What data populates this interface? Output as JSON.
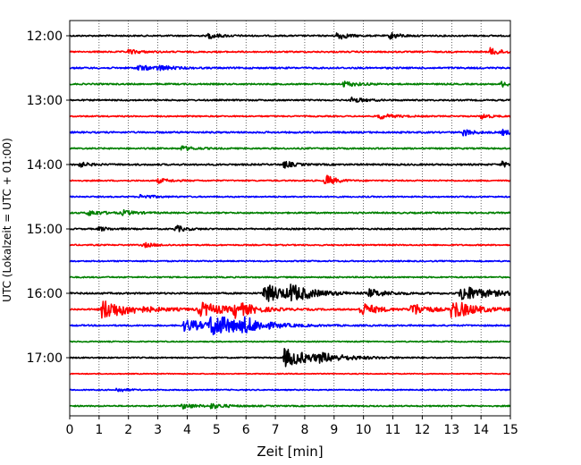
{
  "chart_data": {
    "type": "line",
    "title": "",
    "xlabel": "Zeit  [min]",
    "ylabel": "UTC (Lokalzeit = UTC + 01:00)",
    "xlim": [
      0,
      15
    ],
    "x_ticks": [
      0,
      1,
      2,
      3,
      4,
      5,
      6,
      7,
      8,
      9,
      10,
      11,
      12,
      13,
      14,
      15
    ],
    "x_tick_labels": [
      "0",
      "1",
      "2",
      "3",
      "4",
      "5",
      "6",
      "7",
      "8",
      "9",
      "10",
      "11",
      "12",
      "13",
      "14",
      "15"
    ],
    "y_tick_labels": [
      "12:00",
      "13:00",
      "14:00",
      "15:00",
      "16:00",
      "17:00"
    ],
    "y_tick_trace_index": [
      0,
      4,
      8,
      12,
      16,
      20
    ],
    "grid": "vertical dotted",
    "trace_colors": [
      "#000000",
      "#ff0000",
      "#0000ff",
      "#008000"
    ],
    "traces": [
      {
        "start": "12:00",
        "color": "#000000",
        "noise": 0.8,
        "events": [
          {
            "t": 4.7,
            "amp": 3,
            "dur": 0.4
          },
          {
            "t": 9.1,
            "amp": 5,
            "dur": 0.3
          },
          {
            "t": 10.9,
            "amp": 4,
            "dur": 0.3
          }
        ]
      },
      {
        "start": "12:15",
        "color": "#ff0000",
        "noise": 0.8,
        "events": [
          {
            "t": 14.3,
            "amp": 4,
            "dur": 0.4
          },
          {
            "t": 2.0,
            "amp": 2.5,
            "dur": 0.4
          }
        ]
      },
      {
        "start": "12:30",
        "color": "#0000ff",
        "noise": 0.9,
        "events": [
          {
            "t": 2.3,
            "amp": 3,
            "dur": 0.5
          },
          {
            "t": 3.0,
            "amp": 2.5,
            "dur": 0.4
          }
        ]
      },
      {
        "start": "12:45",
        "color": "#008000",
        "noise": 0.8,
        "events": [
          {
            "t": 9.3,
            "amp": 3,
            "dur": 0.5
          },
          {
            "t": 14.7,
            "amp": 3,
            "dur": 0.3
          }
        ]
      },
      {
        "start": "13:00",
        "color": "#000000",
        "noise": 0.8,
        "events": [
          {
            "t": 9.6,
            "amp": 3,
            "dur": 0.4
          }
        ]
      },
      {
        "start": "13:15",
        "color": "#ff0000",
        "noise": 0.7,
        "events": [
          {
            "t": 10.5,
            "amp": 3,
            "dur": 0.5
          },
          {
            "t": 14.0,
            "amp": 3,
            "dur": 0.3
          }
        ]
      },
      {
        "start": "13:30",
        "color": "#0000ff",
        "noise": 0.9,
        "events": [
          {
            "t": 13.4,
            "amp": 4,
            "dur": 0.3
          },
          {
            "t": 14.7,
            "amp": 3,
            "dur": 0.3
          }
        ]
      },
      {
        "start": "13:45",
        "color": "#008000",
        "noise": 0.8,
        "events": [
          {
            "t": 3.8,
            "amp": 2.5,
            "dur": 0.4
          }
        ]
      },
      {
        "start": "14:00",
        "color": "#000000",
        "noise": 0.9,
        "events": [
          {
            "t": 0.3,
            "amp": 3,
            "dur": 0.3
          },
          {
            "t": 7.3,
            "amp": 4,
            "dur": 0.3
          },
          {
            "t": 14.7,
            "amp": 3,
            "dur": 0.3
          }
        ]
      },
      {
        "start": "14:15",
        "color": "#ff0000",
        "noise": 0.7,
        "events": [
          {
            "t": 8.7,
            "amp": 7,
            "dur": 0.3
          },
          {
            "t": 3.0,
            "amp": 2.5,
            "dur": 0.4
          }
        ]
      },
      {
        "start": "14:30",
        "color": "#0000ff",
        "noise": 0.7,
        "events": [
          {
            "t": 2.4,
            "amp": 2.5,
            "dur": 0.4
          }
        ]
      },
      {
        "start": "14:45",
        "color": "#008000",
        "noise": 0.8,
        "events": [
          {
            "t": 0.6,
            "amp": 3,
            "dur": 0.5
          },
          {
            "t": 1.8,
            "amp": 2.5,
            "dur": 0.4
          }
        ]
      },
      {
        "start": "15:00",
        "color": "#000000",
        "noise": 0.8,
        "events": [
          {
            "t": 3.6,
            "amp": 4,
            "dur": 0.3
          },
          {
            "t": 1.0,
            "amp": 2.5,
            "dur": 0.3
          }
        ]
      },
      {
        "start": "15:15",
        "color": "#ff0000",
        "noise": 0.7,
        "events": [
          {
            "t": 2.5,
            "amp": 2.5,
            "dur": 0.4
          }
        ]
      },
      {
        "start": "15:30",
        "color": "#0000ff",
        "noise": 0.7,
        "events": []
      },
      {
        "start": "15:45",
        "color": "#008000",
        "noise": 0.7,
        "events": []
      },
      {
        "start": "16:00",
        "color": "#000000",
        "noise": 0.9,
        "events": [
          {
            "t": 6.6,
            "amp": 10,
            "dur": 1.0
          },
          {
            "t": 7.5,
            "amp": 7,
            "dur": 0.6
          },
          {
            "t": 13.3,
            "amp": 9,
            "dur": 0.9
          },
          {
            "t": 10.2,
            "amp": 4,
            "dur": 0.6
          }
        ]
      },
      {
        "start": "16:15",
        "color": "#ff0000",
        "noise": 0.9,
        "events": [
          {
            "t": 1.1,
            "amp": 11,
            "dur": 1.0
          },
          {
            "t": 4.4,
            "amp": 8,
            "dur": 0.8
          },
          {
            "t": 5.6,
            "amp": 8,
            "dur": 0.6
          },
          {
            "t": 9.9,
            "amp": 8,
            "dur": 0.5
          },
          {
            "t": 11.6,
            "amp": 8,
            "dur": 0.5
          },
          {
            "t": 13.0,
            "amp": 11,
            "dur": 0.7
          }
        ]
      },
      {
        "start": "16:30",
        "color": "#0000ff",
        "noise": 0.8,
        "events": [
          {
            "t": 3.9,
            "amp": 7,
            "dur": 0.8
          },
          {
            "t": 4.8,
            "amp": 12,
            "dur": 1.0
          },
          {
            "t": 5.9,
            "amp": 6,
            "dur": 0.6
          }
        ]
      },
      {
        "start": "16:45",
        "color": "#008000",
        "noise": 0.6,
        "events": []
      },
      {
        "start": "17:00",
        "color": "#000000",
        "noise": 0.7,
        "events": [
          {
            "t": 7.3,
            "amp": 10,
            "dur": 1.0
          },
          {
            "t": 8.5,
            "amp": 3,
            "dur": 0.8
          }
        ]
      },
      {
        "start": "17:15",
        "color": "#ff0000",
        "noise": 0.5,
        "events": []
      },
      {
        "start": "17:30",
        "color": "#0000ff",
        "noise": 0.6,
        "events": [
          {
            "t": 1.6,
            "amp": 2.5,
            "dur": 0.3
          }
        ]
      },
      {
        "start": "17:45",
        "color": "#008000",
        "noise": 0.7,
        "events": [
          {
            "t": 3.8,
            "amp": 3,
            "dur": 0.5
          },
          {
            "t": 4.8,
            "amp": 2.5,
            "dur": 0.5
          }
        ]
      }
    ]
  }
}
